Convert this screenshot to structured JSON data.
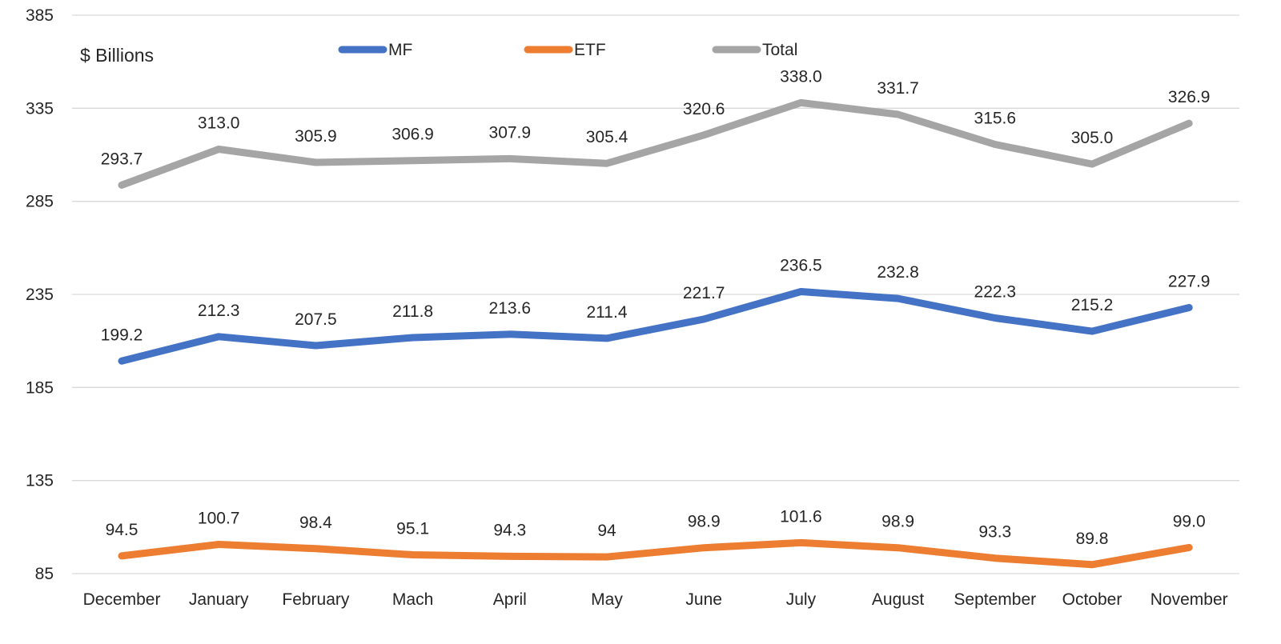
{
  "chart_data": {
    "type": "line",
    "title": "",
    "xlabel": "",
    "ylabel": "",
    "unit_label": "$ Billions",
    "categories": [
      "December",
      "January",
      "February",
      "Mach",
      "April",
      "May",
      "June",
      "July",
      "August",
      "September",
      "October",
      "November"
    ],
    "ylim": [
      85,
      385
    ],
    "yticks": [
      "385",
      "335",
      "285",
      "235",
      "185",
      "135",
      "85"
    ],
    "grid": true,
    "legend_position": "top-center",
    "series": [
      {
        "name": "MF",
        "color": "#4472c4",
        "values": [
          199.2,
          212.3,
          207.5,
          211.8,
          213.6,
          211.4,
          221.7,
          236.5,
          232.8,
          222.3,
          215.2,
          227.9
        ],
        "labels": [
          "199.2",
          "212.3",
          "207.5",
          "211.8",
          "213.6",
          "211.4",
          "221.7",
          "236.5",
          "232.8",
          "222.3",
          "215.2",
          "227.9"
        ]
      },
      {
        "name": "ETF",
        "color": "#ed7d31",
        "values": [
          94.5,
          100.7,
          98.4,
          95.1,
          94.3,
          94,
          98.9,
          101.6,
          98.9,
          93.3,
          89.8,
          99.0
        ],
        "labels": [
          "94.5",
          "100.7",
          "98.4",
          "95.1",
          "94.3",
          "94",
          "98.9",
          "101.6",
          "98.9",
          "93.3",
          "89.8",
          "99.0"
        ]
      },
      {
        "name": "Total",
        "color": "#a5a5a5",
        "values": [
          293.7,
          313.0,
          305.9,
          306.9,
          307.9,
          305.4,
          320.6,
          338.0,
          331.7,
          315.6,
          305.0,
          326.9
        ],
        "labels": [
          "293.7",
          "313.0",
          "305.9",
          "306.9",
          "307.9",
          "305.4",
          "320.6",
          "338.0",
          "331.7",
          "315.6",
          "305.0",
          "326.9"
        ]
      }
    ]
  }
}
